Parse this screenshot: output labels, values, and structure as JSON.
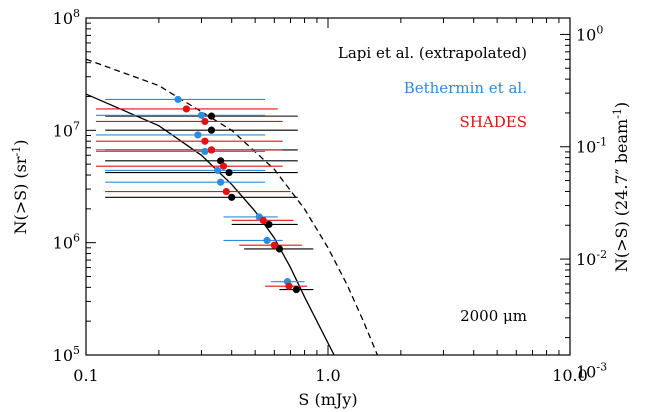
{
  "chart_data": {
    "type": "scatter",
    "title": "",
    "xlabel": "S (mJy)",
    "ylabel": "N(>S) (sr",
    "ylabel_sup": "-1",
    "ylabel_end": ")",
    "y2label": "N(>S) (24.7″ beam",
    "y2label_sup": "-1",
    "y2label_end": ")",
    "xscale": "log",
    "yscale": "log",
    "xlim": [
      0.1,
      10.0
    ],
    "ylim": [
      100000,
      100000000
    ],
    "x_ticks": [
      {
        "value": 0.1,
        "label": "0.1"
      },
      {
        "value": 1.0,
        "label": "1.0"
      },
      {
        "value": 10.0,
        "label": "10.0"
      }
    ],
    "y_ticks": [
      {
        "value": 100000,
        "base": "10",
        "exp": "5"
      },
      {
        "value": 1000000,
        "base": "10",
        "exp": "6"
      },
      {
        "value": 10000000,
        "base": "10",
        "exp": "7"
      },
      {
        "value": 100000000,
        "base": "10",
        "exp": "8"
      }
    ],
    "y2_ticks": [
      {
        "value": 1,
        "base": "10",
        "exp": "0"
      },
      {
        "value": 0.1,
        "base": "10",
        "exp": "-1"
      },
      {
        "value": 0.01,
        "base": "10",
        "exp": "-2"
      },
      {
        "value": 0.001,
        "base": "10",
        "exp": "-3"
      }
    ],
    "y2_scale_factor": 1.4e-08,
    "annotation": "2000 μm",
    "legend_placement": "top-right",
    "series": [
      {
        "name": "Lapi et al. (extrapolated)",
        "color": "#000000",
        "points": [
          {
            "x": 0.33,
            "y": 14000000,
            "xerr": [
              0.12,
              0.75
            ]
          },
          {
            "x": 0.33,
            "y": 10500000,
            "xerr": [
              0.12,
              0.75
            ]
          },
          {
            "x": 0.33,
            "y": 7000000,
            "xerr": [
              0.12,
              0.75
            ]
          },
          {
            "x": 0.36,
            "y": 5600000,
            "xerr": [
              0.12,
              0.75
            ]
          },
          {
            "x": 0.39,
            "y": 4400000,
            "xerr": [
              0.12,
              0.75
            ]
          },
          {
            "x": 0.4,
            "y": 2650000,
            "xerr": [
              0.12,
              0.75
            ]
          },
          {
            "x": 0.57,
            "y": 1520000,
            "xerr": [
              0.4,
              0.75
            ]
          },
          {
            "x": 0.63,
            "y": 920000,
            "xerr": [
              0.45,
              0.87
            ]
          },
          {
            "x": 0.74,
            "y": 400000,
            "xerr": [
              0.63,
              0.87
            ]
          }
        ]
      },
      {
        "name": "Bethermin et al.",
        "color": "#2a8de0",
        "points": [
          {
            "x": 0.24,
            "y": 18000000,
            "xerr": [
              0.12,
              0.55
            ]
          },
          {
            "x": 0.3,
            "y": 13000000,
            "xerr": [
              0.11,
              0.55
            ]
          },
          {
            "x": 0.29,
            "y": 8700000,
            "xerr": [
              0.11,
              0.55
            ]
          },
          {
            "x": 0.31,
            "y": 6200000,
            "xerr": [
              0.11,
              0.55
            ]
          },
          {
            "x": 0.35,
            "y": 4200000,
            "xerr": [
              0.12,
              0.55
            ]
          },
          {
            "x": 0.36,
            "y": 3300000,
            "xerr": [
              0.12,
              0.55
            ]
          },
          {
            "x": 0.52,
            "y": 1620000,
            "xerr": [
              0.37,
              0.62
            ]
          },
          {
            "x": 0.56,
            "y": 1000000,
            "xerr": [
              0.37,
              0.65
            ]
          },
          {
            "x": 0.68,
            "y": 430000,
            "xerr": [
              0.58,
              0.8
            ]
          }
        ]
      },
      {
        "name": "SHADES",
        "color": "#e81010",
        "points": [
          {
            "x": 0.26,
            "y": 15500000,
            "xerr": [
              0.11,
              0.62
            ]
          },
          {
            "x": 0.31,
            "y": 12000000,
            "xerr": [
              0.11,
              0.65
            ]
          },
          {
            "x": 0.31,
            "y": 8000000,
            "xerr": [
              0.11,
              0.65
            ]
          },
          {
            "x": 0.33,
            "y": 6700000,
            "xerr": [
              0.11,
              0.65
            ]
          },
          {
            "x": 0.37,
            "y": 4800000,
            "xerr": [
              0.11,
              0.65
            ]
          },
          {
            "x": 0.38,
            "y": 2850000,
            "xerr": [
              0.12,
              0.7
            ]
          },
          {
            "x": 0.54,
            "y": 1580000,
            "xerr": [
              0.4,
              0.72
            ]
          },
          {
            "x": 0.6,
            "y": 950000,
            "xerr": [
              0.43,
              0.78
            ]
          },
          {
            "x": 0.69,
            "y": 410000,
            "xerr": [
              0.55,
              0.82
            ]
          }
        ]
      }
    ],
    "curves": [
      {
        "style": "solid",
        "color": "#000000",
        "x": [
          0.1,
          0.2,
          0.3,
          0.4,
          0.5,
          0.6,
          0.7,
          0.8,
          0.9,
          1.06
        ],
        "y": [
          21000000,
          11000000,
          6000000,
          3300000,
          1900000,
          1100000,
          600000,
          330000,
          200000,
          100000
        ]
      },
      {
        "style": "dashed",
        "color": "#000000",
        "x": [
          0.1,
          0.2,
          0.4,
          0.6,
          0.8,
          1.0,
          1.2,
          1.4,
          1.6
        ],
        "y": [
          43000000,
          25000000,
          10000000,
          4500000,
          2000000,
          900000,
          420000,
          200000,
          100000
        ]
      }
    ]
  }
}
